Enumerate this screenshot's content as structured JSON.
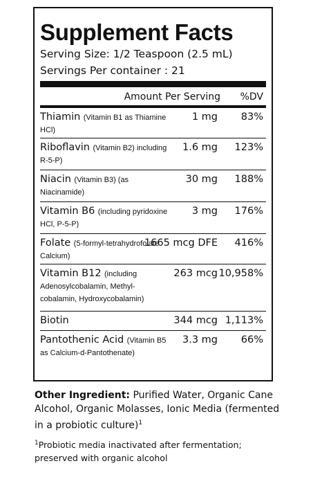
{
  "title": "Supplement Facts",
  "serving_size": "Serving Size: 1/2 Teaspoon (2.5 mL)",
  "servings_per_container": "Servings Per container : 21",
  "header": {
    "amount": "Amount Per Serving",
    "dv": "%DV"
  },
  "nutrients": [
    {
      "name": "Thiamin",
      "qualifier": "(Vitamin B1 as Thiamine HCl)",
      "amount": "1 mg",
      "dv": "83%"
    },
    {
      "name": "Riboflavin",
      "qualifier": "(Vitamin B2) including R-5-P)",
      "amount": "1.6 mg",
      "dv": "123%"
    },
    {
      "name": "Niacin",
      "qualifier": "(Vitamin B3) (as Niacinamide)",
      "amount": "30 mg",
      "dv": "188%"
    },
    {
      "name": "Vitamin B6",
      "qualifier": "(including pyridoxine HCl, P-5-P)",
      "amount": "3 mg",
      "dv": "176%"
    },
    {
      "name": "Folate",
      "qualifier": "(5-formyl-tetrahydrofolate Calcium)",
      "amount": "1665 mcg DFE",
      "dv": "416%"
    },
    {
      "name": "Vitamin B12",
      "qualifier": "(including Adenosylcobalamin, Methyl-cobalamin, Hydroxycobalamin)",
      "amount": "263 mcg",
      "dv": "10,958%"
    },
    {
      "name": "Biotin",
      "qualifier": "",
      "amount": "344 mcg",
      "dv": "1,113%"
    },
    {
      "name": "Pantothenic Acid",
      "qualifier": "(Vitamin B5 as Calcium-d-Pantothenate)",
      "amount": "3.3 mg",
      "dv": "66%"
    }
  ],
  "other_ingredients": {
    "label": "Other Ingredient:",
    "text": "Purified Water, Organic Cane Alcohol, Organic Molasses, Ionic Media (fermented in a probiotic culture)",
    "marker": "1"
  },
  "footnote": {
    "marker": "1",
    "text": "Probiotic media inactivated after fermentation; preserved with organic alcohol"
  }
}
